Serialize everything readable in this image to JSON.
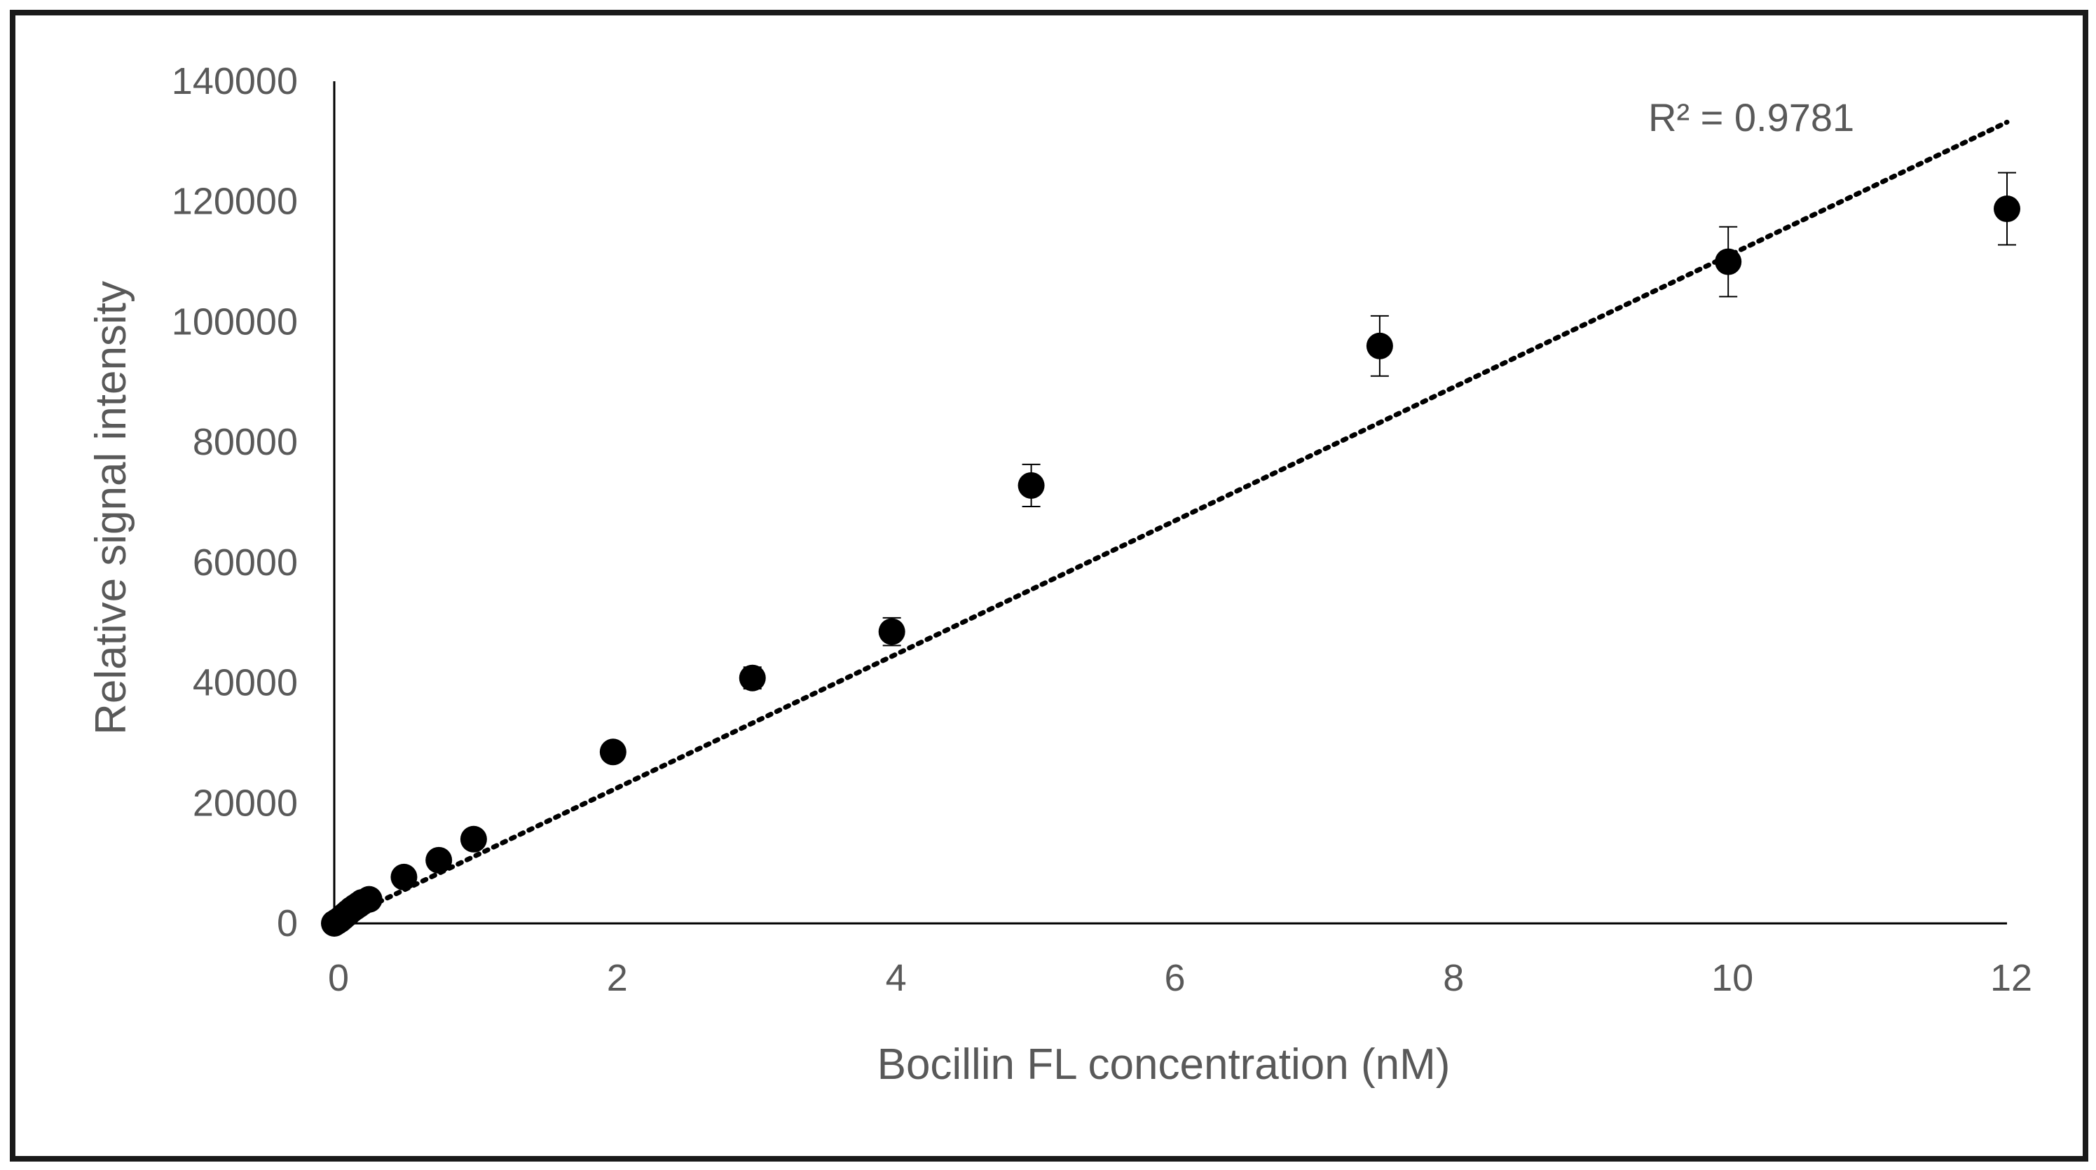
{
  "chart_data": {
    "type": "scatter",
    "xlabel": "Bocillin FL concentration (nM)",
    "ylabel": "Relative signal intensity",
    "xlim": [
      0,
      12
    ],
    "ylim": [
      0,
      140000
    ],
    "x_ticks": [
      "0",
      "2",
      "4",
      "6",
      "8",
      "10",
      "12"
    ],
    "y_ticks": [
      "0",
      "20000",
      "40000",
      "60000",
      "80000",
      "100000",
      "120000",
      "140000"
    ],
    "grid": false,
    "legend": "none",
    "marker_color": "#000000",
    "series": [
      {
        "points": [
          {
            "x": 0,
            "y": 0,
            "err": 0
          },
          {
            "x": 0.02,
            "y": 300,
            "err": 0
          },
          {
            "x": 0.04,
            "y": 600,
            "err": 0
          },
          {
            "x": 0.06,
            "y": 1000,
            "err": 0
          },
          {
            "x": 0.08,
            "y": 1400,
            "err": 0
          },
          {
            "x": 0.1,
            "y": 1800,
            "err": 0
          },
          {
            "x": 0.125,
            "y": 2300,
            "err": 0
          },
          {
            "x": 0.15,
            "y": 2700,
            "err": 0
          },
          {
            "x": 0.175,
            "y": 3100,
            "err": 0
          },
          {
            "x": 0.2,
            "y": 3500,
            "err": 0
          },
          {
            "x": 0.25,
            "y": 4000,
            "err": 0
          },
          {
            "x": 0.5,
            "y": 7700,
            "err": 0
          },
          {
            "x": 0.75,
            "y": 10500,
            "err": 0
          },
          {
            "x": 1,
            "y": 14000,
            "err": 0
          },
          {
            "x": 2,
            "y": 28500,
            "err": 0
          },
          {
            "x": 3,
            "y": 40800,
            "err": 1800
          },
          {
            "x": 4,
            "y": 48500,
            "err": 2300
          },
          {
            "x": 5,
            "y": 72800,
            "err": 3500
          },
          {
            "x": 7.5,
            "y": 96000,
            "err": 5000
          },
          {
            "x": 10,
            "y": 110000,
            "err": 5800
          },
          {
            "x": 12,
            "y": 118800,
            "err": 6000
          }
        ]
      }
    ],
    "trendline": {
      "type": "linear",
      "style": "dotted",
      "x_range": [
        0,
        12
      ],
      "slope": 11100,
      "intercept": 0,
      "r2_label": "R² = 0.9781"
    }
  }
}
